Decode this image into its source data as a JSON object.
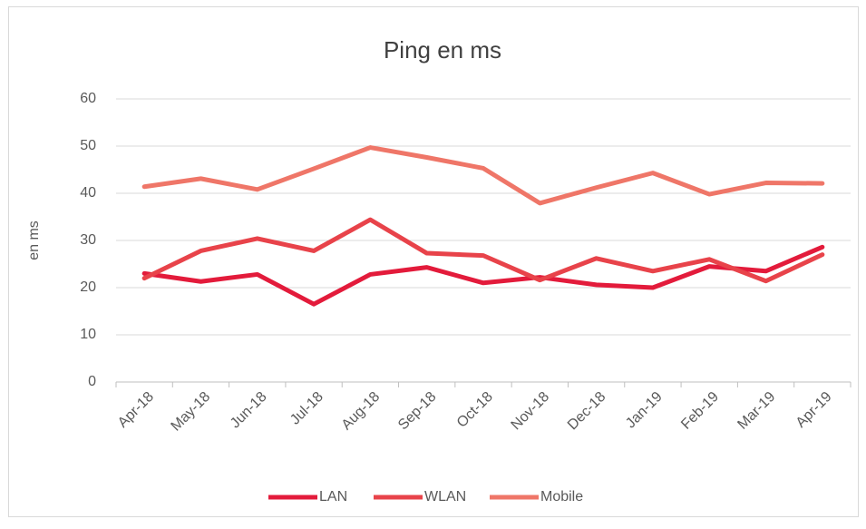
{
  "chart_data": {
    "type": "line",
    "title": "Ping en ms",
    "y_label": "en ms",
    "categories": [
      "Apr-18",
      "May-18",
      "Jun-18",
      "Jul-18",
      "Aug-18",
      "Sep-18",
      "Oct-18",
      "Nov-18",
      "Dec-18",
      "Jan-19",
      "Feb-19",
      "Mar-19",
      "Apr-19"
    ],
    "series": [
      {
        "name": "LAN",
        "color": "#e31b3b",
        "values": [
          23,
          21.3,
          22.8,
          16.5,
          22.8,
          24.3,
          21,
          22.2,
          20.6,
          20,
          24.5,
          23.5,
          28.6
        ]
      },
      {
        "name": "WLAN",
        "color": "#e8434a",
        "values": [
          22,
          27.8,
          30.4,
          27.8,
          34.4,
          27.3,
          26.8,
          21.6,
          26.2,
          23.5,
          26,
          21.4,
          27
        ]
      },
      {
        "name": "Mobile",
        "color": "#ef7668",
        "values": [
          41.4,
          43.1,
          40.8,
          45.2,
          49.7,
          47.6,
          45.3,
          37.9,
          41.2,
          44.3,
          39.8,
          42.2,
          42.1
        ]
      }
    ],
    "ylim": [
      0,
      60
    ],
    "yticks": [
      0,
      10,
      20,
      30,
      40,
      50,
      60
    ],
    "grid": true,
    "legend": "bottom"
  }
}
